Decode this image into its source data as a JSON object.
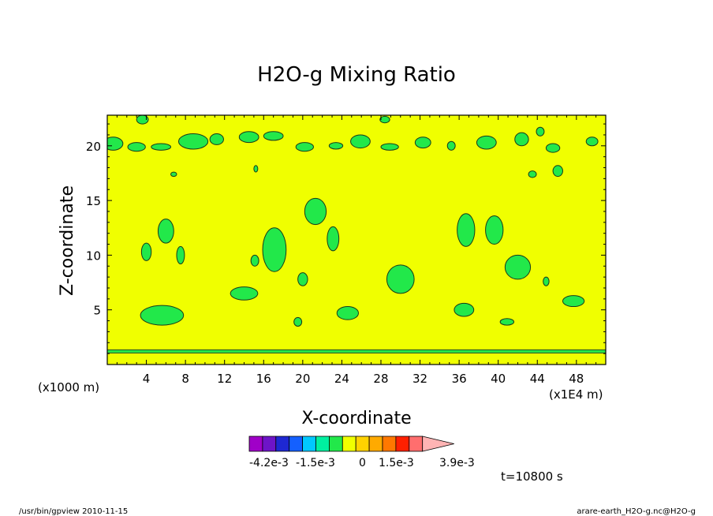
{
  "chart_data": {
    "type": "heatmap",
    "title": "H2O-g Mixing Ratio",
    "xlabel": "X-coordinate",
    "ylabel": "Z-coordinate",
    "x_unit_left": "(x1000 m)",
    "x_unit_right": "(x1E4 m)",
    "x_ticks": [
      4,
      8,
      12,
      16,
      20,
      24,
      28,
      32,
      36,
      40,
      44,
      48
    ],
    "y_ticks": [
      5,
      10,
      15,
      20
    ],
    "xlim": [
      0,
      51
    ],
    "ylim": [
      0,
      22.8
    ],
    "background_level_color": "#f0ff00",
    "region_color": "#22e84a",
    "band_z": 1.2,
    "regions": [
      {
        "cx": 5.6,
        "cz": 4.5,
        "rx": 2.2,
        "rz": 0.9
      },
      {
        "cx": 6.0,
        "cz": 12.2,
        "rx": 0.8,
        "rz": 1.1
      },
      {
        "cx": 4.0,
        "cz": 10.3,
        "rx": 0.5,
        "rz": 0.8
      },
      {
        "cx": 7.5,
        "cz": 10.0,
        "rx": 0.4,
        "rz": 0.8
      },
      {
        "cx": 17.1,
        "cz": 10.5,
        "rx": 1.2,
        "rz": 2.0
      },
      {
        "cx": 14.0,
        "cz": 6.5,
        "rx": 1.4,
        "rz": 0.6
      },
      {
        "cx": 15.1,
        "cz": 9.5,
        "rx": 0.4,
        "rz": 0.5
      },
      {
        "cx": 21.3,
        "cz": 14.0,
        "rx": 1.1,
        "rz": 1.2
      },
      {
        "cx": 23.1,
        "cz": 11.5,
        "rx": 0.6,
        "rz": 1.1
      },
      {
        "cx": 20.0,
        "cz": 7.8,
        "rx": 0.5,
        "rz": 0.6
      },
      {
        "cx": 24.6,
        "cz": 4.7,
        "rx": 1.1,
        "rz": 0.6
      },
      {
        "cx": 30.0,
        "cz": 7.8,
        "rx": 1.4,
        "rz": 1.3
      },
      {
        "cx": 19.5,
        "cz": 3.9,
        "rx": 0.4,
        "rz": 0.4
      },
      {
        "cx": 36.7,
        "cz": 12.3,
        "rx": 0.9,
        "rz": 1.5
      },
      {
        "cx": 39.6,
        "cz": 12.3,
        "rx": 0.9,
        "rz": 1.3
      },
      {
        "cx": 36.5,
        "cz": 5.0,
        "rx": 1.0,
        "rz": 0.6
      },
      {
        "cx": 42.0,
        "cz": 8.9,
        "rx": 1.3,
        "rz": 1.1
      },
      {
        "cx": 47.7,
        "cz": 5.8,
        "rx": 1.1,
        "rz": 0.5
      },
      {
        "cx": 40.9,
        "cz": 3.9,
        "rx": 0.7,
        "rz": 0.3
      },
      {
        "cx": 44.9,
        "cz": 7.6,
        "rx": 0.3,
        "rz": 0.4
      }
    ],
    "upper_band": [
      {
        "cx": 0.6,
        "cz": 20.2,
        "rx": 1.0,
        "rz": 0.6
      },
      {
        "cx": 3.0,
        "cz": 19.9,
        "rx": 0.9,
        "rz": 0.4
      },
      {
        "cx": 5.5,
        "cz": 19.9,
        "rx": 1.0,
        "rz": 0.3
      },
      {
        "cx": 8.8,
        "cz": 20.4,
        "rx": 1.5,
        "rz": 0.7
      },
      {
        "cx": 11.2,
        "cz": 20.6,
        "rx": 0.7,
        "rz": 0.5
      },
      {
        "cx": 14.5,
        "cz": 20.8,
        "rx": 1.0,
        "rz": 0.5
      },
      {
        "cx": 17.0,
        "cz": 20.9,
        "rx": 1.0,
        "rz": 0.4
      },
      {
        "cx": 20.2,
        "cz": 19.9,
        "rx": 0.9,
        "rz": 0.4
      },
      {
        "cx": 23.4,
        "cz": 20.0,
        "rx": 0.7,
        "rz": 0.3
      },
      {
        "cx": 25.9,
        "cz": 20.4,
        "rx": 1.0,
        "rz": 0.6
      },
      {
        "cx": 28.9,
        "cz": 19.9,
        "rx": 0.9,
        "rz": 0.3
      },
      {
        "cx": 32.3,
        "cz": 20.3,
        "rx": 0.8,
        "rz": 0.5
      },
      {
        "cx": 35.2,
        "cz": 20.0,
        "rx": 0.4,
        "rz": 0.4
      },
      {
        "cx": 38.8,
        "cz": 20.3,
        "rx": 1.0,
        "rz": 0.6
      },
      {
        "cx": 42.4,
        "cz": 20.6,
        "rx": 0.7,
        "rz": 0.6
      },
      {
        "cx": 45.6,
        "cz": 19.8,
        "rx": 0.7,
        "rz": 0.4
      },
      {
        "cx": 49.6,
        "cz": 20.4,
        "rx": 0.6,
        "rz": 0.4
      },
      {
        "cx": 3.6,
        "cz": 22.4,
        "rx": 0.6,
        "rz": 0.4
      },
      {
        "cx": 28.4,
        "cz": 22.4,
        "rx": 0.5,
        "rz": 0.3
      },
      {
        "cx": 44.3,
        "cz": 21.3,
        "rx": 0.4,
        "rz": 0.4
      },
      {
        "cx": 46.1,
        "cz": 17.7,
        "rx": 0.5,
        "rz": 0.5
      },
      {
        "cx": 43.5,
        "cz": 17.4,
        "rx": 0.4,
        "rz": 0.3
      },
      {
        "cx": 15.2,
        "cz": 17.9,
        "rx": 0.2,
        "rz": 0.3
      },
      {
        "cx": 6.8,
        "cz": 17.4,
        "rx": 0.3,
        "rz": 0.2
      }
    ],
    "colorbar": {
      "colors": [
        "#a000c8",
        "#6e14c8",
        "#1e28d2",
        "#1460ff",
        "#00c8ff",
        "#00f0a0",
        "#22e84a",
        "#f0ff00",
        "#ffd200",
        "#ffaa00",
        "#ff7800",
        "#ff2000",
        "#ff6e6e",
        "#ffb4b4"
      ],
      "labels": [
        "-4.2e-3",
        "-1.5e-3",
        "0",
        "1.5e-3",
        "3.9e-3"
      ]
    },
    "time_label": "t=10800 s"
  },
  "footer": {
    "left": "/usr/bin/gpview  2010-11-15",
    "right": "arare-earth_H2O-g.nc@H2O-g"
  }
}
